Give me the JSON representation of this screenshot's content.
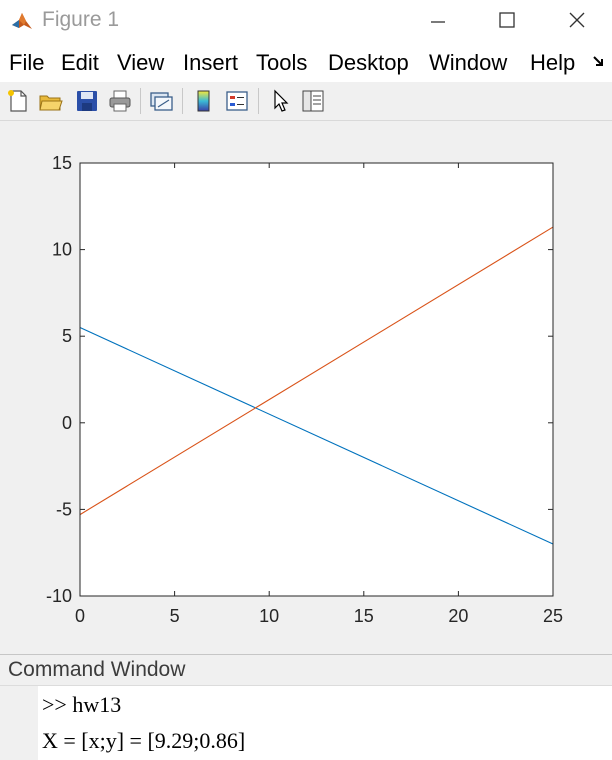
{
  "window": {
    "title": "Figure 1",
    "icon": "matlab-logo-icon",
    "controls": [
      "minimize-icon",
      "maximize-icon",
      "close-icon"
    ]
  },
  "menu": {
    "items": [
      "File",
      "Edit",
      "View",
      "Insert",
      "Tools",
      "Desktop",
      "Window",
      "Help"
    ],
    "overflow_icon": "dock-arrow-icon"
  },
  "toolbar": {
    "buttons": [
      "new-figure-icon",
      "open-file-icon",
      "save-icon",
      "print-icon",
      "link-plot-icon",
      "insert-colorbar-icon",
      "insert-legend-icon",
      "edit-plot-icon",
      "property-inspector-icon"
    ]
  },
  "chart_data": {
    "type": "line",
    "title": "",
    "xlabel": "",
    "ylabel": "",
    "xlim": [
      0,
      25
    ],
    "ylim": [
      -10,
      15
    ],
    "xticks": [
      0,
      5,
      10,
      15,
      20,
      25
    ],
    "yticks": [
      -10,
      -5,
      0,
      5,
      10,
      15
    ],
    "grid": false,
    "series": [
      {
        "color": "#0072BD",
        "x": [
          0,
          25
        ],
        "y": [
          5.5,
          -7.0
        ]
      },
      {
        "color": "#D95319",
        "x": [
          0,
          25
        ],
        "y": [
          -5.3,
          11.3
        ]
      }
    ]
  },
  "command_window": {
    "title": "Command Window",
    "lines": [
      ">> hw13",
      "X = [x;y] = [9.29;0.86]"
    ]
  }
}
